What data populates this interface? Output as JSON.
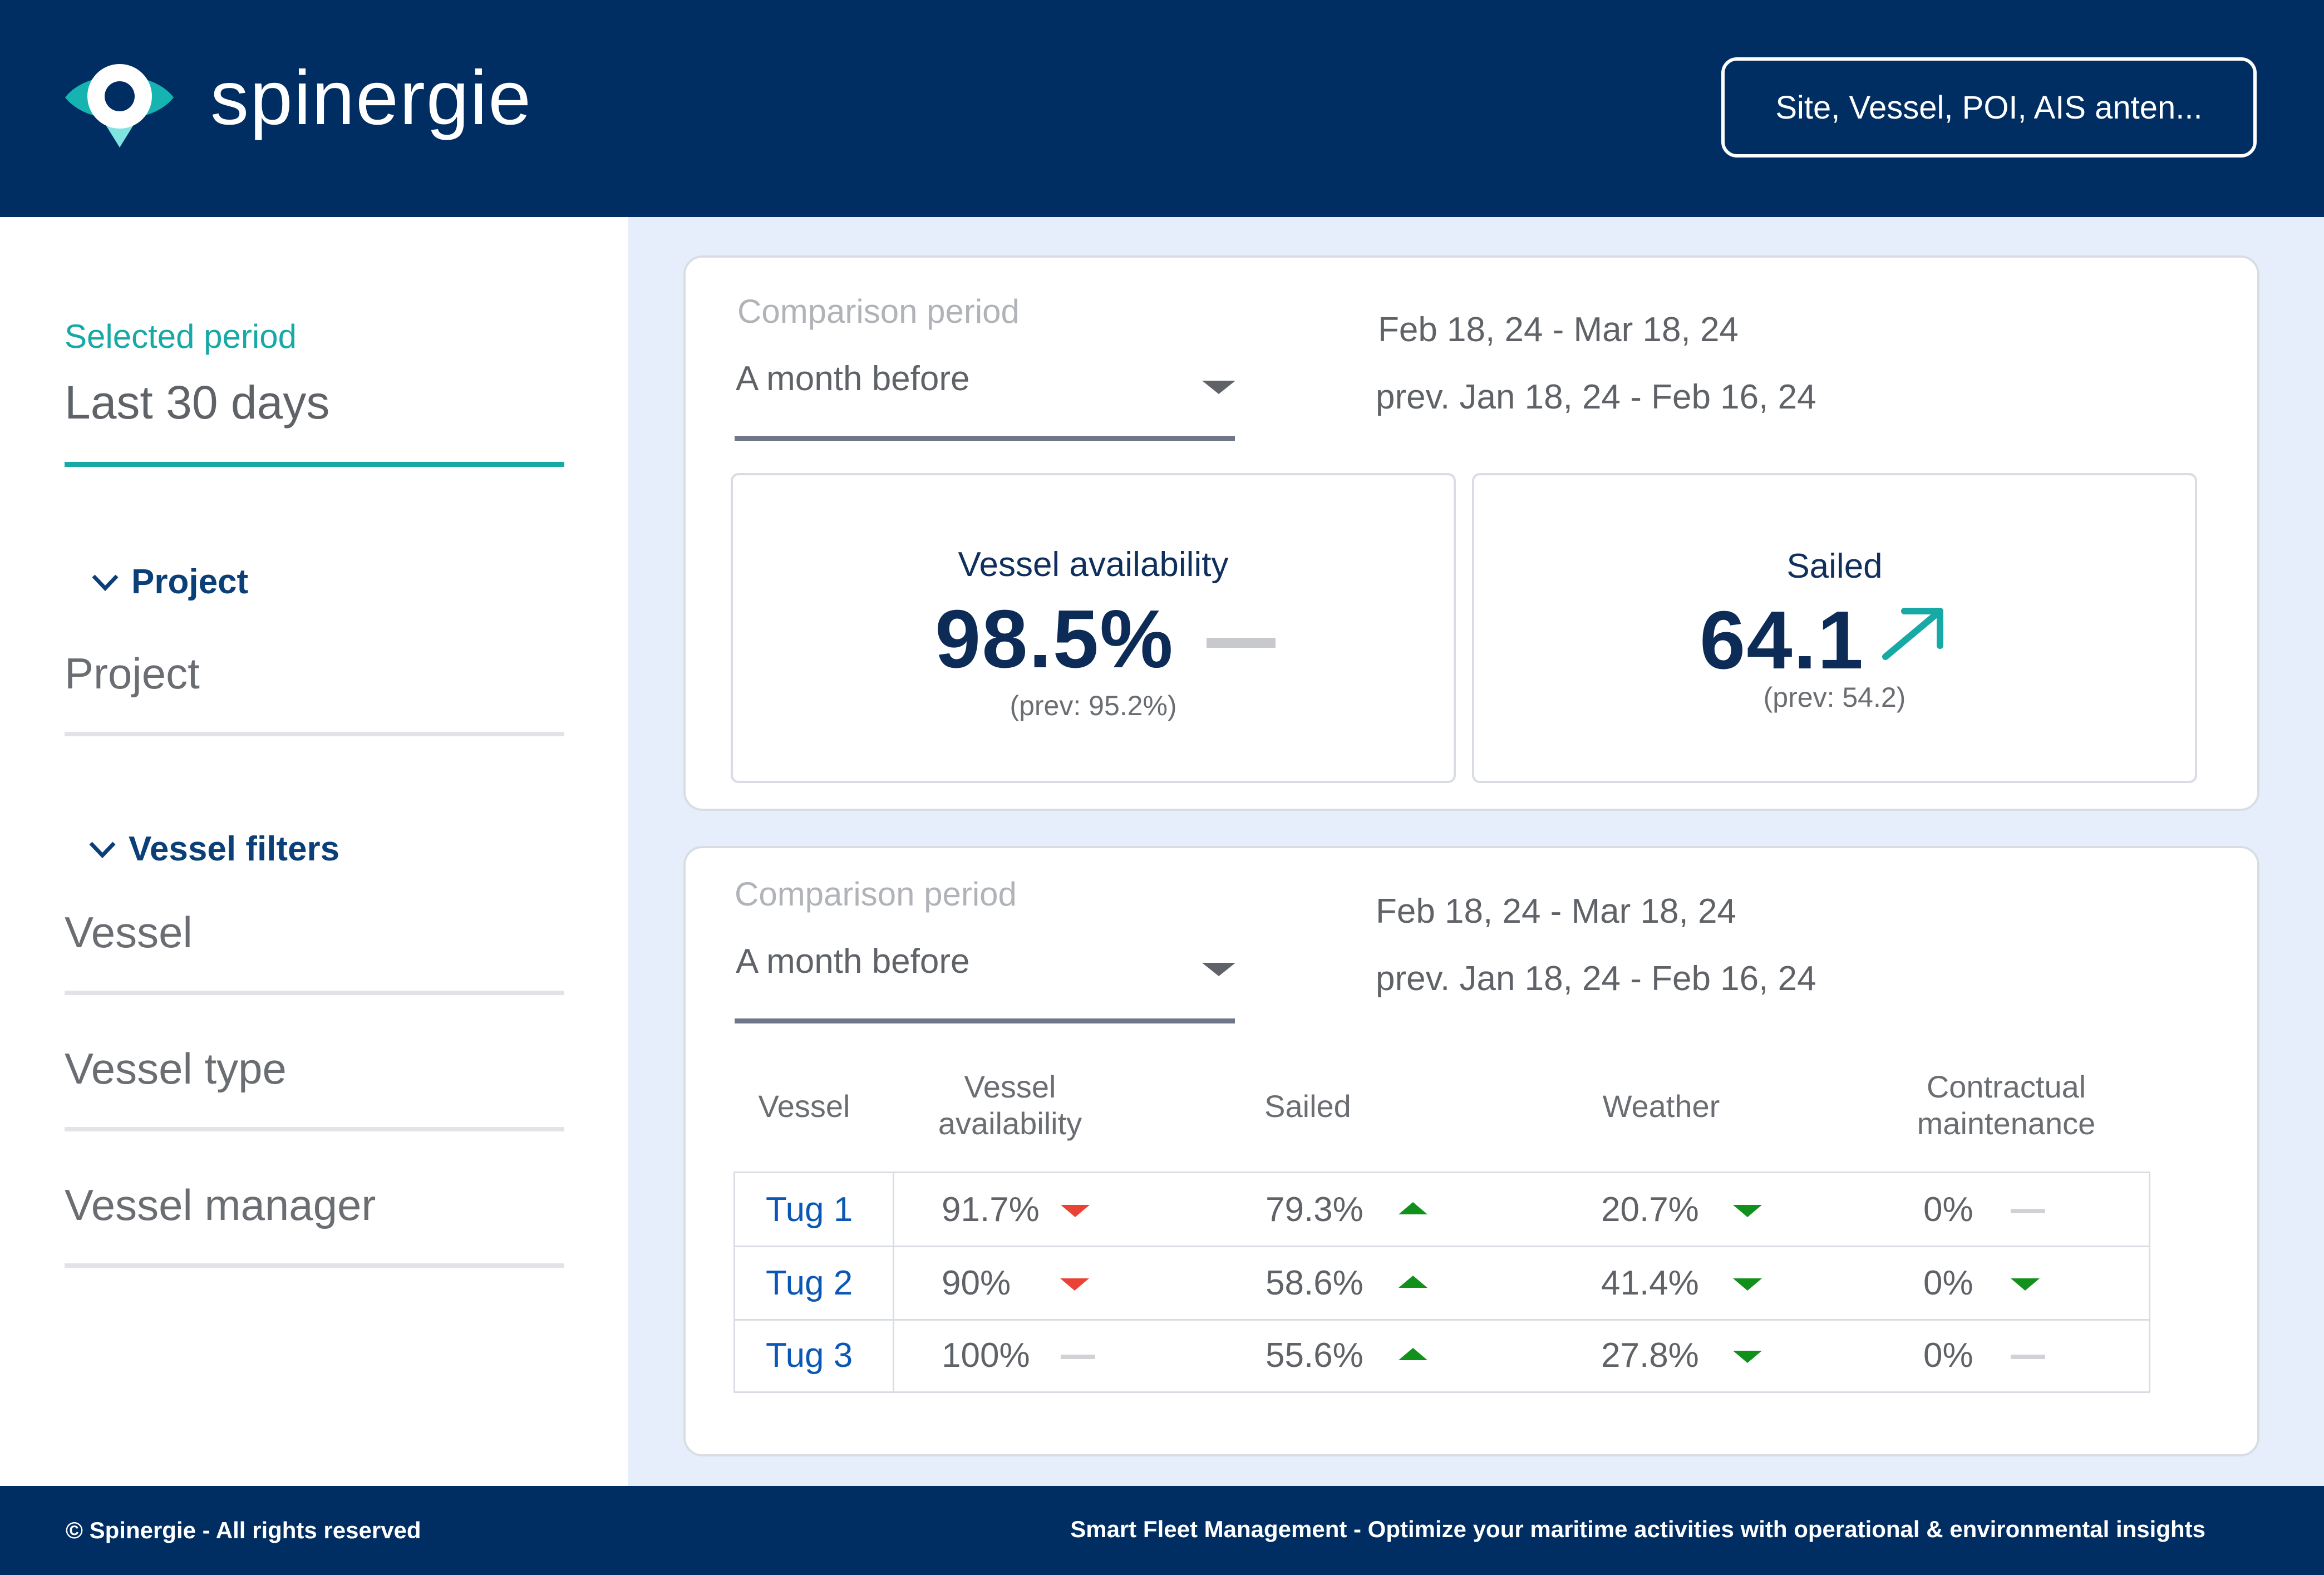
{
  "header": {
    "brand": "spinergie",
    "search_placeholder": "Site, Vessel, POI, AIS anten..."
  },
  "sidebar": {
    "selected_period_label": "Selected period",
    "selected_period_value": "Last 30 days",
    "project_section": "Project",
    "project_filter": "Project",
    "vessel_section": "Vessel filters",
    "filters": [
      "Vessel",
      "Vessel type",
      "Vessel manager"
    ]
  },
  "summary_card": {
    "comparison_label": "Comparison period",
    "comparison_value": "A month before",
    "current_range": "Feb 18, 24 - Mar 18, 24",
    "previous_range": "prev. Jan 18, 24 - Feb 16, 24",
    "kpis": [
      {
        "title": "Vessel availability",
        "value": "98.5%",
        "prev": "(prev: 95.2%)",
        "trend": "flat"
      },
      {
        "title": "Sailed",
        "value": "64.1",
        "prev": "(prev: 54.2)",
        "trend": "up"
      }
    ]
  },
  "table_card": {
    "comparison_label": "Comparison period",
    "comparison_value": "A month before",
    "current_range": "Feb 18, 24 - Mar 18, 24",
    "previous_range": "prev. Jan 18, 24 - Feb 16, 24",
    "columns": [
      "Vessel",
      "Vessel availability",
      "Sailed",
      "Weather",
      "Contractual maintenance"
    ],
    "rows": [
      {
        "vessel": "Tug 1",
        "availability": "91.7%",
        "availability_trend": "down-red",
        "sailed": "79.3%",
        "sailed_trend": "up",
        "weather": "20.7%",
        "weather_trend": "down",
        "maintenance": "0%",
        "maintenance_trend": "flat"
      },
      {
        "vessel": "Tug 2",
        "availability": "90%",
        "availability_trend": "down-red",
        "sailed": "58.6%",
        "sailed_trend": "up",
        "weather": "41.4%",
        "weather_trend": "down",
        "maintenance": "0%",
        "maintenance_trend": "down"
      },
      {
        "vessel": "Tug 3",
        "availability": "100%",
        "availability_trend": "flat",
        "sailed": "55.6%",
        "sailed_trend": "up",
        "weather": "27.8%",
        "weather_trend": "down",
        "maintenance": "0%",
        "maintenance_trend": "flat"
      }
    ]
  },
  "footer": {
    "copyright": "© Spinergie - All rights reserved",
    "tagline": "Smart Fleet Management - Optimize your maritime activities with operational & environmental insights"
  },
  "colors": {
    "navy": "#002e62",
    "teal": "#17a9a6",
    "green": "#11901c",
    "red": "#ea4335",
    "link": "#0b57b5"
  }
}
